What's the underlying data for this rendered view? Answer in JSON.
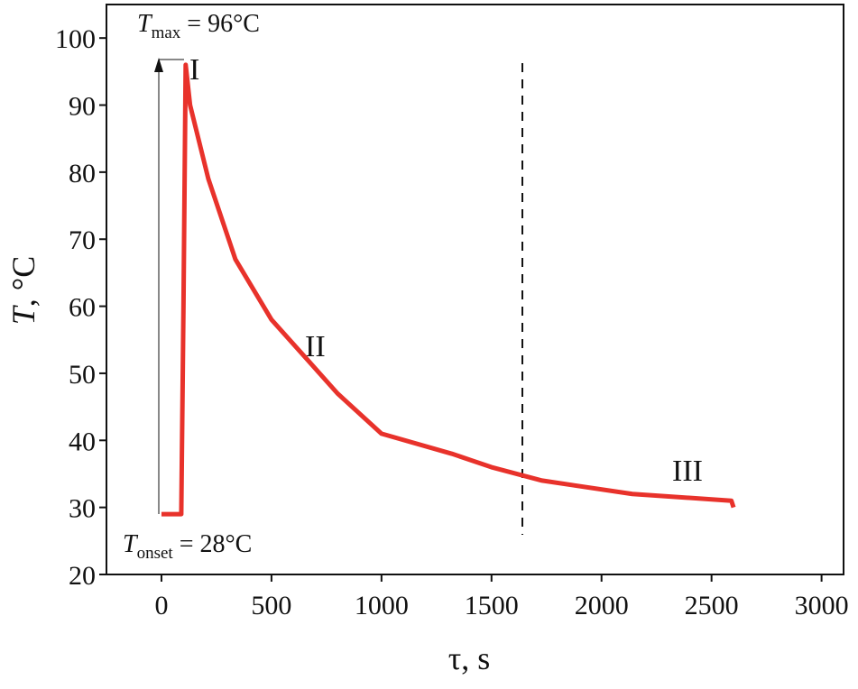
{
  "chart_data": {
    "type": "line",
    "x_label": {
      "symbol": "τ",
      "unit": ", s"
    },
    "y_label": {
      "symbol": "T",
      "unit": ", °C"
    },
    "annotations": {
      "tmax": {
        "symbol": "T",
        "sub": "max",
        "text": " = 96°C"
      },
      "tonset": {
        "symbol": "T",
        "sub": "onset",
        "text": " = 28°C"
      },
      "stages": [
        "I",
        "II",
        "III"
      ]
    },
    "x": [
      0,
      90,
      100,
      110,
      130,
      213,
      336,
      500,
      664,
      800,
      1000,
      1320,
      1500,
      1730,
      2140,
      2590,
      2600
    ],
    "series": [
      {
        "name": "T",
        "color": "#e8322b",
        "values": [
          29,
          29,
          60,
          96,
          90,
          79,
          67,
          58,
          52,
          47,
          41,
          38,
          36,
          34,
          32,
          31,
          30
        ]
      }
    ],
    "xlim": [
      -250,
      3100
    ],
    "ylim": [
      20,
      105
    ],
    "xticks": [
      0,
      500,
      1000,
      1500,
      2000,
      2500,
      3000
    ],
    "yticks": [
      20,
      30,
      40,
      50,
      60,
      70,
      80,
      90,
      100
    ]
  }
}
